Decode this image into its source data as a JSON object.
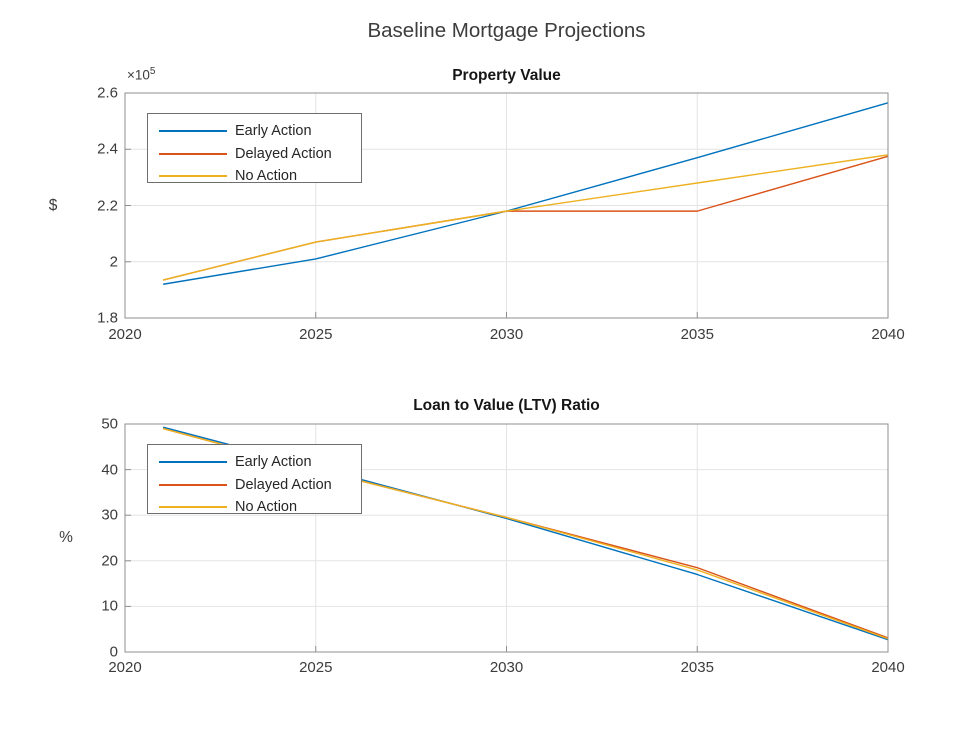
{
  "figure": {
    "title": "Baseline Mortgage Projections",
    "background": "#ffffff"
  },
  "palette": {
    "matlab_blue": "#0072BD",
    "matlab_orange": "#D95319",
    "matlab_yellow": "#EDB120",
    "grid_color": "#e4e4e4",
    "axis_color": "#8f8f8f",
    "label_color": "#3c3c3c"
  },
  "chart_data": [
    {
      "type": "line",
      "title": "Property Value",
      "ylabel": "$",
      "y_offset": {
        "base": "×10",
        "exp": "5"
      },
      "x": [
        2021,
        2025,
        2030,
        2035,
        2040
      ],
      "xlim": [
        2020,
        2040
      ],
      "ylim": [
        180000,
        260000
      ],
      "xticks": [
        2020,
        2025,
        2030,
        2035,
        2040
      ],
      "yticks": [
        180000,
        200000,
        220000,
        240000,
        260000
      ],
      "xticklabels": [
        "2020",
        "2025",
        "2030",
        "2035",
        "2040"
      ],
      "yticklabels": [
        "1.8",
        "2",
        "2.2",
        "2.4",
        "2.6"
      ],
      "grid": true,
      "legend_position": "northwest",
      "legend_entries": [
        "Early Action",
        "Delayed Action",
        "No Action"
      ],
      "series": [
        {
          "name": "Early Action",
          "color": "#0072BD",
          "values": [
            192000,
            201000,
            218000,
            237000,
            256500
          ]
        },
        {
          "name": "Delayed Action",
          "color": "#D95319",
          "values": [
            193500,
            207000,
            218000,
            218000,
            237500
          ]
        },
        {
          "name": "No Action",
          "color": "#EDB120",
          "values": [
            193500,
            207000,
            218000,
            228000,
            238000
          ]
        }
      ]
    },
    {
      "type": "line",
      "title": "Loan to Value (LTV) Ratio",
      "ylabel": "%",
      "x": [
        2021,
        2025,
        2030,
        2035,
        2040
      ],
      "xlim": [
        2020,
        2040
      ],
      "ylim": [
        0,
        50
      ],
      "xticks": [
        2020,
        2025,
        2030,
        2035,
        2040
      ],
      "yticks": [
        0,
        10,
        20,
        30,
        40,
        50
      ],
      "xticklabels": [
        "2020",
        "2025",
        "2030",
        "2035",
        "2040"
      ],
      "yticklabels": [
        "0",
        "10",
        "20",
        "30",
        "40",
        "50"
      ],
      "grid": true,
      "legend_position": "northwest",
      "legend_entries": [
        "Early Action",
        "Delayed Action",
        "No Action"
      ],
      "series": [
        {
          "name": "Early Action",
          "color": "#0072BD",
          "values": [
            49.3,
            40.5,
            29.3,
            17.0,
            2.7
          ]
        },
        {
          "name": "Delayed Action",
          "color": "#D95319",
          "values": [
            49.0,
            40.0,
            29.5,
            18.5,
            3.1
          ]
        },
        {
          "name": "No Action",
          "color": "#EDB120",
          "values": [
            49.0,
            40.0,
            29.5,
            18.0,
            2.9
          ]
        }
      ]
    }
  ]
}
